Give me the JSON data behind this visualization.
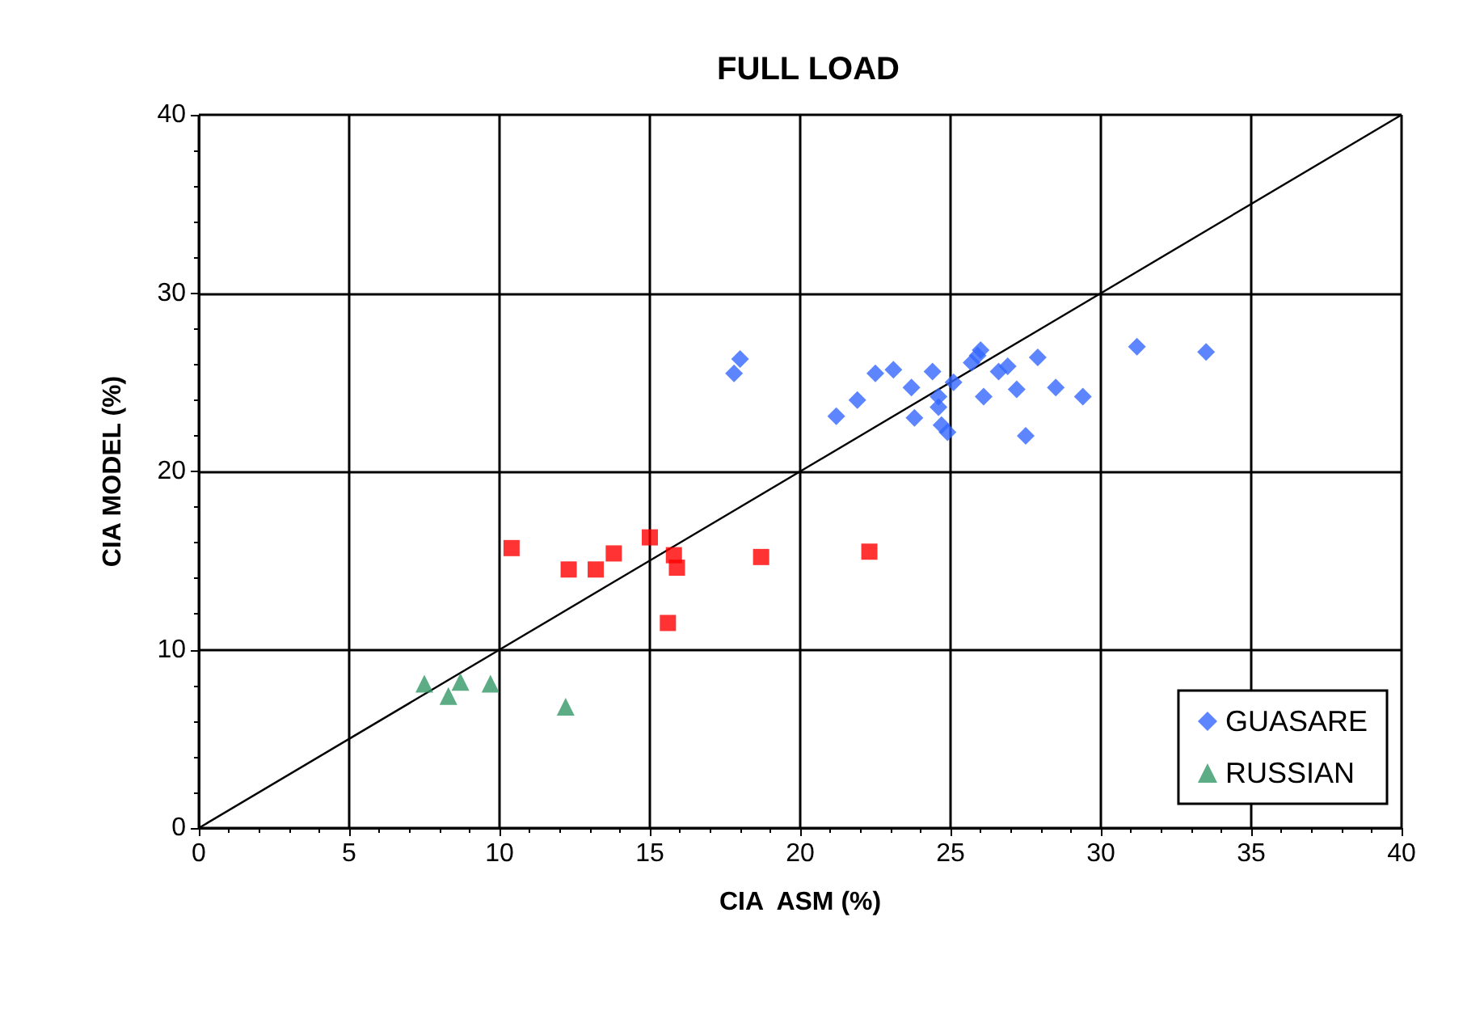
{
  "chart_data": {
    "type": "scatter",
    "title": "FULL LOAD",
    "xlabel": "CIA  ASM (%)",
    "ylabel": "CIA MODEL (%)",
    "xlim": [
      0,
      40
    ],
    "xticks": [
      0,
      5,
      10,
      15,
      20,
      25,
      30,
      35,
      40
    ],
    "ylim": [
      0,
      40
    ],
    "yticks": [
      0,
      10,
      20,
      30,
      40
    ],
    "grid": true,
    "legend": "bottom right",
    "series": [
      {
        "name": "GUASARE",
        "color": "#3366ff",
        "marker": "diamond",
        "x": [
          17.8,
          18,
          21.2,
          21.9,
          22.5,
          23.1,
          23.7,
          23.8,
          24.4,
          24.6,
          24.7,
          24.9,
          25.1,
          25.7,
          26,
          26.1,
          26.6,
          26.9,
          27.2,
          27.5,
          27.9,
          28.5,
          29.4,
          31.2,
          33.5,
          25.9,
          24.6
        ],
        "values": [
          25.5,
          26.3,
          23.1,
          24,
          25.5,
          25.7,
          24.7,
          23,
          25.6,
          23.6,
          22.6,
          22.2,
          25,
          26.1,
          26.8,
          24.2,
          25.6,
          25.9,
          24.6,
          22,
          26.4,
          24.7,
          24.2,
          27,
          26.7,
          26.5,
          24.2
        ]
      },
      {
        "color": "#ff0000",
        "marker": "square",
        "x": [
          10.4,
          12.3,
          13.2,
          13.8,
          15,
          15.8,
          15.9,
          15.6,
          18.7,
          22.3
        ],
        "values": [
          15.7,
          14.5,
          14.5,
          15.4,
          16.3,
          15.3,
          14.6,
          11.5,
          15.2,
          15.5
        ]
      },
      {
        "name": "RUSSIAN",
        "color": "#339966",
        "marker": "triangle",
        "x": [
          7.5,
          8.3,
          8.7,
          9.7,
          12.2
        ],
        "values": [
          8.1,
          7.4,
          8.2,
          8.1,
          6.8
        ]
      },
      {
        "type": "line",
        "color": "#000000",
        "marker": "none",
        "line_style": "solid",
        "x": [
          0,
          40
        ],
        "values": [
          0,
          40
        ]
      }
    ]
  }
}
